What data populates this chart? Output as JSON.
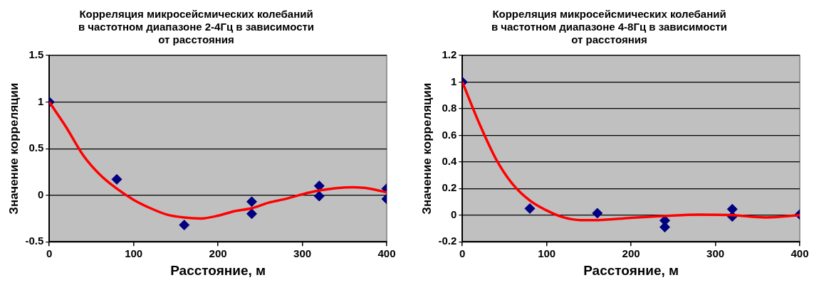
{
  "chart_data": [
    {
      "type": "scatter",
      "title": "Корреляция микросейсмических колебаний в частотном диапазоне 2-4Гц в зависимости от расстояния",
      "xlabel": "Расстояние, м",
      "ylabel": "Значение корреляции",
      "xlim": [
        0,
        400
      ],
      "xticks": [
        0,
        100,
        200,
        300,
        400
      ],
      "ylim": [
        -0.5,
        1.5
      ],
      "yticks": [
        -0.5,
        0,
        0.5,
        1,
        1.5
      ],
      "grid": "y",
      "series": [
        {
          "type": "scatter",
          "color": "#000080",
          "marker": "diamond",
          "x": [
            0,
            80,
            160,
            240,
            240,
            320,
            320,
            400,
            400
          ],
          "values": [
            1,
            0.17,
            -0.32,
            -0.07,
            -0.2,
            0.1,
            -0.01,
            0.07,
            -0.04
          ]
        },
        {
          "type": "line",
          "color": "#ff0000",
          "marker": "none",
          "line_style": "solid",
          "x": [
            0,
            20,
            40,
            60,
            80,
            100,
            120,
            140,
            160,
            180,
            200,
            220,
            240,
            260,
            280,
            300,
            320,
            340,
            360,
            380,
            400
          ],
          "values": [
            1,
            0.73,
            0.43,
            0.22,
            0.07,
            -0.05,
            -0.14,
            -0.21,
            -0.24,
            -0.25,
            -0.22,
            -0.17,
            -0.14,
            -0.08,
            -0.04,
            0.01,
            0.05,
            0.075,
            0.085,
            0.07,
            0.03
          ]
        }
      ]
    },
    {
      "type": "scatter",
      "title": "Корреляция микросейсмических колебаний в частотном диапазоне 4-8Гц в зависимости от расстояния",
      "xlabel": "Расстояние, м",
      "ylabel": "Значение корреляции",
      "xlim": [
        0,
        400
      ],
      "xticks": [
        0,
        100,
        200,
        300,
        400
      ],
      "ylim": [
        -0.2,
        1.2
      ],
      "yticks": [
        -0.2,
        0,
        0.2,
        0.4,
        0.6,
        0.8,
        1,
        1.2
      ],
      "grid": "y",
      "series": [
        {
          "type": "scatter",
          "color": "#000080",
          "marker": "diamond",
          "x": [
            0,
            80,
            160,
            240,
            240,
            320,
            320,
            400
          ],
          "values": [
            1,
            0.05,
            0.015,
            -0.04,
            -0.09,
            0.045,
            -0.01,
            0.005
          ]
        },
        {
          "type": "line",
          "color": "#ff0000",
          "marker": "none",
          "line_style": "solid",
          "x": [
            0,
            20,
            40,
            60,
            80,
            100,
            120,
            140,
            160,
            200,
            240,
            280,
            320,
            360,
            400
          ],
          "values": [
            1,
            0.69,
            0.42,
            0.23,
            0.11,
            0.035,
            -0.017,
            -0.037,
            -0.037,
            -0.02,
            -0.006,
            0.004,
            0,
            -0.017,
            0
          ]
        }
      ]
    }
  ]
}
